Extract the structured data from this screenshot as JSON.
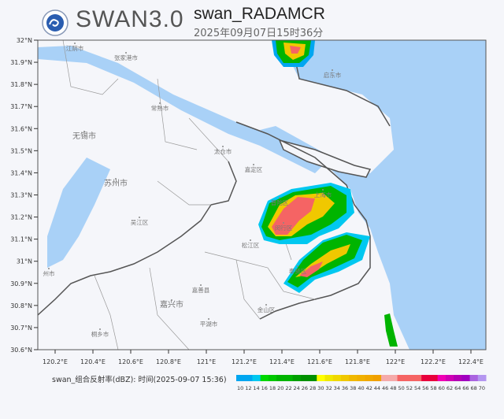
{
  "header": {
    "brand": "SWAN3.0",
    "title": "swan_RADAMCR",
    "timestamp": "2025年09月07日15时36分",
    "logo_icon": "cma-logo-icon"
  },
  "map": {
    "lat_ticks": [
      "32°N",
      "31.9°N",
      "31.8°N",
      "31.7°N",
      "31.6°N",
      "31.5°N",
      "31.4°N",
      "31.3°N",
      "31.2°N",
      "31.1°N",
      "31°N",
      "30.9°N",
      "30.8°N",
      "30.7°N",
      "30.6°N"
    ],
    "lon_ticks": [
      "120.2°E",
      "120.4°E",
      "120.6°E",
      "120.8°E",
      "121°E",
      "121.2°E",
      "121.4°E",
      "121.6°E",
      "121.8°E",
      "122°E",
      "122.2°E",
      "122.4°E"
    ],
    "places": [
      "江阴市",
      "张家港市",
      "启东市",
      "常熟市",
      "无锡市",
      "太仓市",
      "嘉定区",
      "苏州市",
      "上海市",
      "普陀区",
      "吴江区",
      "闵行区",
      "松江区",
      "奉贤区",
      "嘉善县",
      "嘉兴市",
      "金山区",
      "平湖市",
      "桐乡市",
      "州市"
    ],
    "colors": {
      "land": "#f5f6fa",
      "sea": "#a9d1f7"
    }
  },
  "legend": {
    "title": "swan_组合反射率(dBZ): 时间(2025-09-07 15:36)",
    "labels": [
      "10",
      "12",
      "14",
      "16",
      "18",
      "20",
      "22",
      "24",
      "26",
      "28",
      "30",
      "32",
      "34",
      "36",
      "38",
      "40",
      "42",
      "44",
      "46",
      "48",
      "50",
      "52",
      "54",
      "56",
      "58",
      "60",
      "62",
      "64",
      "66",
      "68",
      "70"
    ],
    "colors": [
      "#00a6f0",
      "#00a6f0",
      "#00c8f0",
      "#00d800",
      "#00c800",
      "#00b400",
      "#00b400",
      "#00a000",
      "#009000",
      "#009000",
      "#ffff00",
      "#f0e800",
      "#f0d800",
      "#f0c800",
      "#f0b800",
      "#f0b000",
      "#f0a800",
      "#f0a000",
      "#f5aaaa",
      "#f5aaaa",
      "#f56464",
      "#f56464",
      "#f56464",
      "#e8003c",
      "#e8003c",
      "#f000b4",
      "#d000b4",
      "#b400b4",
      "#a000c0",
      "#aa64e0",
      "#b496f0"
    ]
  }
}
